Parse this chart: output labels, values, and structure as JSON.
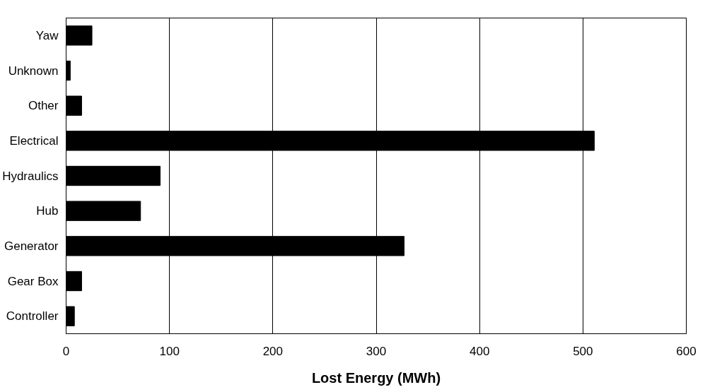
{
  "chart_data": {
    "type": "bar",
    "orientation": "horizontal",
    "xlabel": "Lost Energy (MWh)",
    "categories": [
      "Yaw",
      "Unknown",
      "Other",
      "Electrical",
      "Hydraulics",
      "Hub",
      "Generator",
      "Gear Box",
      "Controller"
    ],
    "values": [
      25,
      4,
      15,
      511,
      91,
      72,
      327,
      15,
      8
    ],
    "color": "#000000",
    "xlim": [
      0,
      600
    ],
    "xticks": [
      0,
      100,
      200,
      300,
      400,
      500,
      600
    ],
    "grid": "x"
  }
}
